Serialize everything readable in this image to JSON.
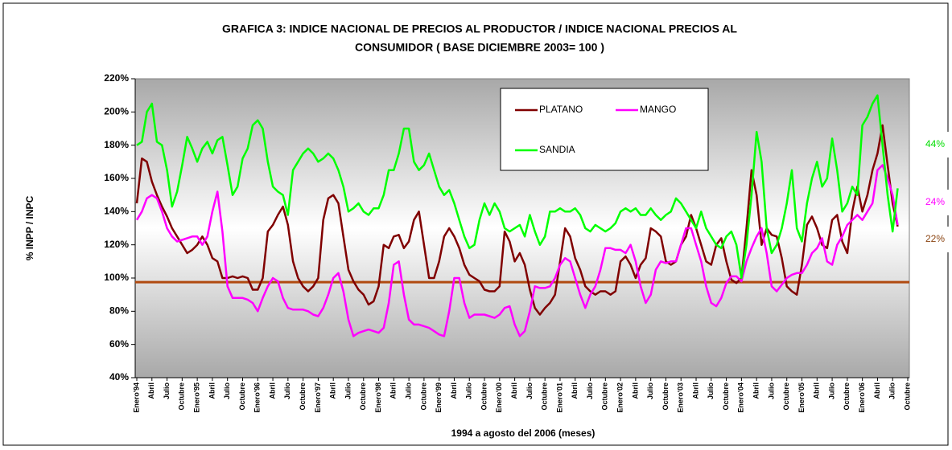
{
  "chart_data": {
    "type": "line",
    "title": "GRAFICA 3: INDICE NACIONAL DE PRECIOS AL PRODUCTOR /  INDICE NACIONAL PRECIOS AL",
    "subtitle": "CONSUMIDOR ( BASE DICIEMBRE 2003= 100 )",
    "y_label": "% INPP / INPC",
    "x_label": "1994 a agosto del 2006 (meses)",
    "categories": [
      "Enero'94",
      null,
      null,
      "Abril",
      null,
      null,
      "Julio",
      null,
      null,
      "Octubre",
      null,
      null,
      "Enero'95",
      null,
      null,
      "Abril",
      null,
      null,
      "Julio",
      null,
      null,
      "Octubre",
      null,
      null,
      "Enero'96",
      null,
      null,
      "Abril",
      null,
      null,
      "Julio",
      null,
      null,
      "Octubre",
      null,
      null,
      "Enero'97",
      null,
      null,
      "Abril",
      null,
      null,
      "Julio",
      null,
      null,
      "Octubre",
      null,
      null,
      "Enero'98",
      null,
      null,
      "Abril",
      null,
      null,
      "Julio",
      null,
      null,
      "Octubre",
      null,
      null,
      "Enero'99",
      null,
      null,
      "Abril",
      null,
      null,
      "Julio",
      null,
      null,
      "Octubre",
      null,
      null,
      "Enero'00",
      null,
      null,
      "Abril",
      null,
      null,
      "Julio",
      null,
      null,
      "Octubre",
      null,
      null,
      "Enero'01",
      null,
      null,
      "Abril",
      null,
      null,
      "Julio",
      null,
      null,
      "Octubre",
      null,
      null,
      "Enero'02",
      null,
      null,
      "Abril",
      null,
      null,
      "Julio",
      null,
      null,
      "Octubre",
      null,
      null,
      "Enero'03",
      null,
      null,
      "Abril",
      null,
      null,
      "Julio",
      null,
      null,
      "Octubre",
      null,
      null,
      "Enero'04",
      null,
      null,
      "Abril",
      null,
      null,
      "Julio",
      null,
      null,
      "Octubre",
      null,
      null,
      "Enero'05",
      null,
      null,
      "Abril",
      null,
      null,
      "Julio",
      null,
      null,
      "Octubre",
      null,
      null,
      "Enero'06",
      null,
      null,
      "Abril",
      null,
      null,
      "Julio",
      null,
      null,
      "Octubre"
    ],
    "series": [
      {
        "name": "PLATANO",
        "color": "#800000",
        "values": [
          145,
          172,
          170,
          158,
          150,
          143,
          137,
          130,
          125,
          120,
          115,
          117,
          120,
          125,
          120,
          112,
          110,
          100,
          100,
          101,
          100,
          101,
          100,
          93,
          93,
          100,
          128,
          132,
          138,
          143,
          132,
          110,
          100,
          95,
          92,
          95,
          100,
          135,
          148,
          150,
          145,
          125,
          105,
          98,
          93,
          90,
          84,
          86,
          95,
          120,
          118,
          125,
          126,
          118,
          122,
          135,
          140,
          120,
          100,
          100,
          110,
          125,
          130,
          125,
          118,
          108,
          102,
          100,
          98,
          93,
          92,
          92,
          95,
          128,
          122,
          110,
          115,
          108,
          93,
          82,
          78,
          82,
          85,
          90,
          110,
          130,
          125,
          112,
          105,
          95,
          92,
          90,
          92,
          92,
          90,
          92,
          110,
          113,
          108,
          100,
          108,
          112,
          130,
          128,
          125,
          110,
          108,
          110,
          120,
          125,
          138,
          130,
          120,
          110,
          108,
          120,
          124,
          110,
          99,
          97,
          100,
          130,
          165,
          150,
          120,
          130,
          126,
          125,
          112,
          95,
          92,
          90,
          108,
          132,
          137,
          130,
          120,
          118,
          135,
          138,
          122,
          115,
          140,
          155,
          140,
          150,
          165,
          175,
          192,
          168,
          145,
          131,
          null,
          null
        ]
      },
      {
        "name": "MANGO",
        "color": "#ff00ff",
        "values": [
          135,
          140,
          148,
          150,
          148,
          140,
          130,
          125,
          122,
          123,
          124,
          125,
          125,
          120,
          125,
          140,
          152,
          128,
          95,
          88,
          88,
          88,
          87,
          85,
          80,
          88,
          95,
          100,
          98,
          88,
          82,
          81,
          81,
          81,
          80,
          78,
          77,
          82,
          90,
          100,
          103,
          92,
          75,
          65,
          67,
          68,
          69,
          68,
          67,
          70,
          85,
          108,
          110,
          90,
          75,
          72,
          72,
          71,
          70,
          68,
          66,
          65,
          80,
          100,
          100,
          85,
          76,
          78,
          78,
          78,
          77,
          76,
          78,
          82,
          83,
          72,
          65,
          68,
          80,
          95,
          94,
          94,
          95,
          100,
          108,
          112,
          110,
          100,
          90,
          82,
          90,
          95,
          105,
          118,
          118,
          117,
          117,
          115,
          120,
          110,
          95,
          85,
          90,
          105,
          110,
          109,
          110,
          110,
          120,
          130,
          130,
          120,
          110,
          95,
          85,
          83,
          88,
          97,
          101,
          101,
          98,
          110,
          118,
          125,
          130,
          115,
          95,
          92,
          96,
          100,
          102,
          103,
          103,
          108,
          115,
          118,
          124,
          110,
          108,
          120,
          125,
          132,
          135,
          138,
          135,
          140,
          145,
          165,
          168,
          160,
          150,
          132,
          null,
          null
        ]
      },
      {
        "name": "SANDIA",
        "color": "#00ff00",
        "values": [
          180,
          182,
          200,
          205,
          182,
          180,
          165,
          143,
          152,
          168,
          185,
          178,
          170,
          178,
          182,
          175,
          183,
          185,
          168,
          150,
          155,
          172,
          178,
          192,
          195,
          190,
          170,
          155,
          152,
          150,
          138,
          165,
          170,
          175,
          178,
          175,
          170,
          172,
          175,
          172,
          165,
          155,
          140,
          142,
          145,
          140,
          138,
          142,
          142,
          150,
          165,
          165,
          175,
          190,
          190,
          170,
          165,
          168,
          175,
          165,
          155,
          150,
          153,
          145,
          135,
          125,
          118,
          120,
          135,
          145,
          138,
          145,
          140,
          130,
          128,
          130,
          132,
          125,
          138,
          128,
          120,
          125,
          140,
          140,
          142,
          140,
          140,
          142,
          138,
          130,
          128,
          132,
          130,
          128,
          130,
          133,
          140,
          142,
          140,
          142,
          138,
          138,
          142,
          138,
          135,
          138,
          140,
          148,
          145,
          140,
          135,
          130,
          140,
          130,
          125,
          120,
          118,
          125,
          128,
          120,
          100,
          120,
          150,
          188,
          170,
          130,
          115,
          120,
          130,
          145,
          165,
          130,
          122,
          145,
          160,
          170,
          155,
          160,
          184,
          165,
          140,
          145,
          155,
          150,
          192,
          197,
          205,
          210,
          180,
          150,
          128,
          154,
          null,
          null
        ]
      }
    ],
    "reference_line": {
      "value": 97.5,
      "color": "#b04a10"
    },
    "annotations": [
      {
        "text": "44%",
        "color": "#00dd00"
      },
      {
        "text": "24%",
        "color": "#ff00ff"
      },
      {
        "text": "22%",
        "color": "#8b4513"
      }
    ],
    "ylim": [
      40,
      220
    ],
    "yticks": [
      {
        "value": 40,
        "label": "40%"
      },
      {
        "value": 60,
        "label": "60%"
      },
      {
        "value": 80,
        "label": "80%"
      },
      {
        "value": 100,
        "label": "100%"
      },
      {
        "value": 120,
        "label": "120%"
      },
      {
        "value": 140,
        "label": "140%"
      },
      {
        "value": 160,
        "label": "160%"
      },
      {
        "value": 180,
        "label": "180%"
      },
      {
        "value": 200,
        "label": "200%"
      },
      {
        "value": 220,
        "label": "220%"
      }
    ]
  }
}
